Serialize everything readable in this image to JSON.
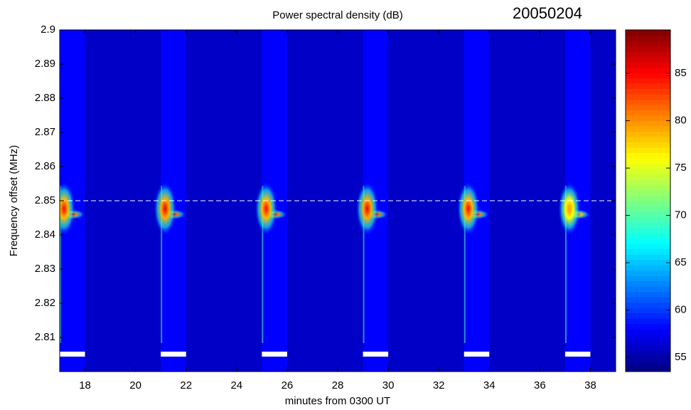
{
  "chart_data": {
    "type": "spectrogram",
    "title": "Power spectral density (dB)",
    "annotation": "20050204",
    "x_label": "minutes from 0300 UT",
    "y_label": "Frequency offset (MHz)",
    "xlim": [
      17,
      39
    ],
    "xticks": [
      18,
      20,
      22,
      24,
      26,
      28,
      30,
      32,
      34,
      36,
      38
    ],
    "ylim": [
      2.8,
      2.9
    ],
    "yticks": [
      2.81,
      2.82,
      2.83,
      2.84,
      2.85,
      2.86,
      2.87,
      2.88,
      2.89,
      2.9
    ],
    "clim": [
      53.5,
      89.6
    ],
    "cticks": [
      55,
      60,
      65,
      70,
      75,
      80,
      85
    ],
    "colormap": "jet",
    "background_db": 56,
    "band_db": 58,
    "reference_freq": 2.85,
    "bursts": [
      {
        "start": 17,
        "end": 18,
        "peak_freq": 2.846,
        "peak_db": 85
      },
      {
        "start": 21,
        "end": 22,
        "peak_freq": 2.846,
        "peak_db": 86
      },
      {
        "start": 25,
        "end": 26,
        "peak_freq": 2.846,
        "peak_db": 85
      },
      {
        "start": 29,
        "end": 30,
        "peak_freq": 2.846,
        "peak_db": 86
      },
      {
        "start": 33,
        "end": 34,
        "peak_freq": 2.846,
        "peak_db": 85
      },
      {
        "start": 37,
        "end": 38,
        "peak_freq": 2.846,
        "peak_db": 80
      }
    ]
  }
}
